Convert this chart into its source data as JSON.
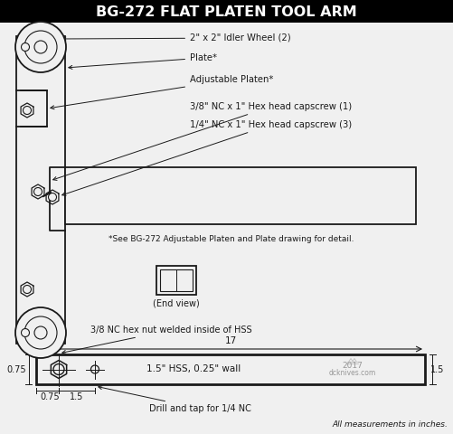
{
  "title": "BG-272 FLAT PLATEN TOOL ARM",
  "title_bg": "#000000",
  "title_color": "#ffffff",
  "bg_color": "#f0f0f0",
  "line_color": "#1a1a1a",
  "label_idler_wheel": "2\" x 2\" Idler Wheel (2)",
  "label_plate": "Plate*",
  "label_adj_platen": "Adjustable Platen*",
  "label_capscrew1": "3/8\" NC x 1\" Hex head capscrew (1)",
  "label_capscrew2": "1/4\" NC x 1\" Hex head capscrew (3)",
  "label_see": "*See BG-272 Adjustable Platen and Plate drawing for detail.",
  "label_end_view": "(End view)",
  "label_hex_nut": "3/8 NC hex nut welded inside of HSS",
  "label_hss": "1.5\" HSS, 0.25\" wall",
  "label_drill": "Drill and tap for 1/4 NC",
  "label_dim_17": "17",
  "label_dim_075a": "0.75",
  "label_dim_075b": "0.75",
  "label_dim_15a": "1.5",
  "label_dim_15b": "1.5",
  "label_all_measurements": "All measurements in inches.",
  "watermark_year": "2017",
  "watermark_site": "dcknives.com"
}
